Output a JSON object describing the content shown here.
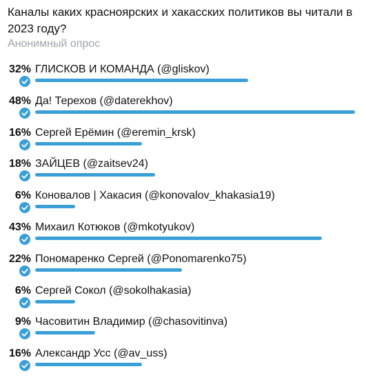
{
  "poll": {
    "question": "Каналы каких красноярских и хакасских политиков вы читали в 2023 году?",
    "type_label": "Анонимный опрос",
    "accent_color": "#3a9fd6",
    "check_icon": "check-circle-icon",
    "options": [
      {
        "percent": "32%",
        "value": 32,
        "label": "ГЛИСКОВ И КОМАНДА (@gliskov)"
      },
      {
        "percent": "48%",
        "value": 48,
        "label": "Да! Терехов (@daterekhov)"
      },
      {
        "percent": "16%",
        "value": 16,
        "label": "Сергей Ерёмин (@eremin_krsk)"
      },
      {
        "percent": "18%",
        "value": 18,
        "label": "ЗАЙЦЕВ (@zaitsev24)"
      },
      {
        "percent": "6%",
        "value": 6,
        "label": "Коновалов | Хакасия (@konovalov_khakasia19)"
      },
      {
        "percent": "43%",
        "value": 43,
        "label": "Михаил Котюков (@mkotyukov)"
      },
      {
        "percent": "22%",
        "value": 22,
        "label": "Пономаренко Сергей (@Ponomarenko75)"
      },
      {
        "percent": "6%",
        "value": 6,
        "label": "Сергей Сокол (@sokolhakasia)"
      },
      {
        "percent": "9%",
        "value": 9,
        "label": "Часовитин Владимир (@chasovitinva)"
      },
      {
        "percent": "16%",
        "value": 16,
        "label": "Александр Усс (@av_uss)"
      }
    ]
  }
}
